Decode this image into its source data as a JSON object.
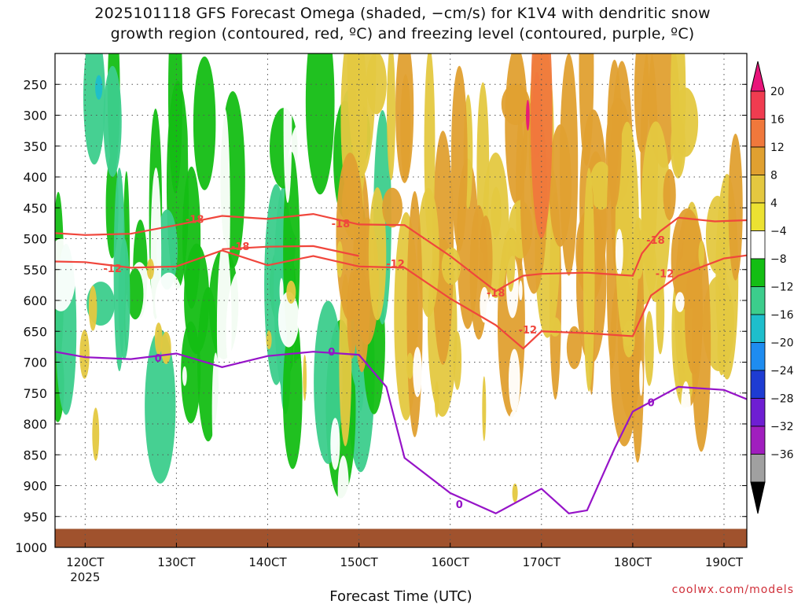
{
  "title_line1": "2025101118 GFS Forecast Omega (shaded, −cm/s) for K1V4 with dendritic snow",
  "title_line2": "growth region (contoured, red, ºC) and freezing level (contoured, purple, ºC)",
  "xlabel": "Forecast Time (UTC)",
  "credit": "coolwx.com/models",
  "chart_data": {
    "type": "heatmap",
    "x_ticks": [
      "120CT",
      "130CT",
      "140CT",
      "150CT",
      "160CT",
      "170CT",
      "180CT",
      "190CT"
    ],
    "x_year_label": "2025",
    "y_ticks": [
      250,
      300,
      350,
      400,
      450,
      500,
      550,
      600,
      650,
      700,
      750,
      800,
      850,
      900,
      950,
      1000
    ],
    "y_scale": "pressure",
    "y_range": [
      200,
      1000
    ],
    "x_range_days": [
      11.67,
      19.25
    ],
    "colorbar_levels": [
      20,
      16,
      12,
      8,
      4,
      -4,
      -8,
      -12,
      -16,
      -20,
      -24,
      -28,
      -32,
      -36
    ],
    "colorbar_colors": [
      "#f03c50",
      "#f0783c",
      "#e0a030",
      "#e4c840",
      "#ece232",
      "#ffffff",
      "#14be14",
      "#3ccd8c",
      "#1ebecc",
      "#1e8cf0",
      "#1e3cd2",
      "#6e1ed2",
      "#a01ebe",
      "#a0a0a0"
    ],
    "colorbar_top_color": "#e8147a",
    "colorbar_bottom_color": "#000000",
    "ground_color": "#a0522d",
    "contours": [
      {
        "name": "-12",
        "color": "#f0463c",
        "points": [
          [
            11.67,
            537
          ],
          [
            12.0,
            538
          ],
          [
            12.5,
            547
          ],
          [
            13.0,
            545
          ],
          [
            13.5,
            519
          ],
          [
            14.0,
            543
          ],
          [
            14.5,
            528
          ],
          [
            15.0,
            545
          ],
          [
            15.5,
            547
          ],
          [
            16.0,
            597
          ],
          [
            16.5,
            640
          ],
          [
            16.8,
            678
          ],
          [
            17.0,
            650
          ],
          [
            17.5,
            653
          ],
          [
            18.0,
            658
          ],
          [
            18.2,
            592
          ],
          [
            18.5,
            560
          ],
          [
            19.0,
            532
          ],
          [
            19.25,
            527
          ]
        ],
        "labels": [
          [
            12.3,
            548
          ],
          [
            15.4,
            540
          ],
          [
            16.85,
            647
          ],
          [
            18.35,
            556
          ]
        ]
      },
      {
        "name": "-18",
        "color": "#f0463c",
        "points": [
          [
            11.67,
            491
          ],
          [
            12.0,
            494
          ],
          [
            12.5,
            492
          ],
          [
            13.0,
            478
          ],
          [
            13.5,
            463
          ],
          [
            14.0,
            468
          ],
          [
            14.5,
            460
          ],
          [
            15.0,
            477
          ],
          [
            15.5,
            478
          ],
          [
            16.0,
            528
          ],
          [
            16.5,
            585
          ],
          [
            16.8,
            560
          ],
          [
            17.0,
            557
          ],
          [
            17.5,
            555
          ],
          [
            18.0,
            560
          ],
          [
            18.1,
            524
          ],
          [
            18.3,
            488
          ],
          [
            18.5,
            466
          ],
          [
            18.9,
            472
          ],
          [
            19.25,
            470
          ]
        ],
        "labels": [
          [
            13.2,
            468
          ],
          [
            14.8,
            475
          ],
          [
            16.5,
            587
          ],
          [
            18.25,
            502
          ]
        ]
      },
      {
        "name": "-18b",
        "color": "#f0463c",
        "points": [
          [
            13.5,
            517
          ],
          [
            14.0,
            513
          ],
          [
            14.5,
            512
          ],
          [
            15.0,
            528
          ]
        ],
        "labels": [
          [
            13.7,
            512
          ]
        ]
      },
      {
        "name": "0",
        "color": "#9614c8",
        "points": [
          [
            11.67,
            683
          ],
          [
            12.0,
            692
          ],
          [
            12.5,
            695
          ],
          [
            13.0,
            686
          ],
          [
            13.5,
            708
          ],
          [
            14.0,
            690
          ],
          [
            14.5,
            683
          ],
          [
            15.0,
            688
          ],
          [
            15.3,
            740
          ],
          [
            15.5,
            855
          ],
          [
            16.0,
            912
          ],
          [
            16.5,
            945
          ],
          [
            17.0,
            905
          ],
          [
            17.3,
            945
          ],
          [
            17.5,
            940
          ],
          [
            17.8,
            840
          ],
          [
            18.0,
            780
          ],
          [
            18.5,
            740
          ],
          [
            19.0,
            745
          ],
          [
            19.25,
            760
          ]
        ],
        "labels": [
          [
            12.8,
            693
          ],
          [
            14.7,
            683
          ],
          [
            16.1,
            930
          ],
          [
            18.2,
            765
          ]
        ]
      }
    ]
  }
}
